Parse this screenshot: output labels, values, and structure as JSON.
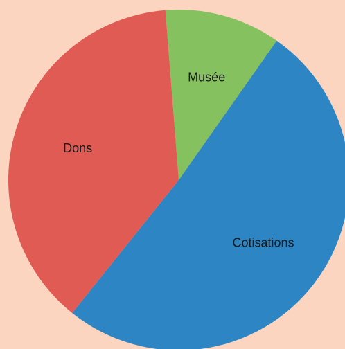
{
  "chart_data": {
    "type": "pie",
    "categories": [
      "Musée",
      "Cotisations",
      "Dons"
    ],
    "values": [
      11,
      51,
      38
    ],
    "colors": [
      "#86c160",
      "#2d86c3",
      "#e05b54"
    ],
    "start_angle_degrees_clockwise_from_north": -4.5,
    "legend": "none"
  },
  "background_color": "#fcd5c0"
}
